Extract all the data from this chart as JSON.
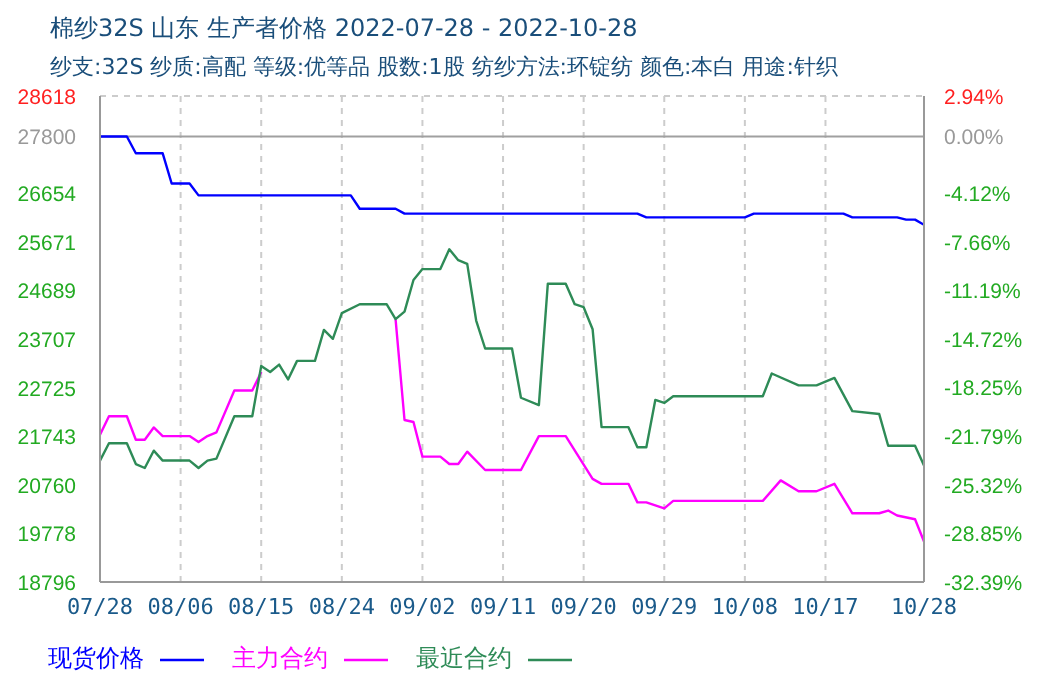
{
  "chart_data": {
    "type": "line",
    "title": "棉纱32S 山东 生产者价格 2022-07-28 - 2022-10-28",
    "subtitle": "纱支:32S 纱质:高配 等级:优等品 股数:1股 纺纱方法:环锭纺 颜色:本白 用途:针织",
    "xlim": [
      "2022-07-28",
      "2022-10-28"
    ],
    "xticks": [
      {
        "value": "2022-07-28",
        "label": "07/28"
      },
      {
        "value": "2022-08-06",
        "label": "08/06"
      },
      {
        "value": "2022-08-15",
        "label": "08/15"
      },
      {
        "value": "2022-08-24",
        "label": "08/24"
      },
      {
        "value": "2022-09-02",
        "label": "09/02"
      },
      {
        "value": "2022-09-11",
        "label": "09/11"
      },
      {
        "value": "2022-09-20",
        "label": "09/20"
      },
      {
        "value": "2022-09-29",
        "label": "09/29"
      },
      {
        "value": "2022-10-08",
        "label": "10/08"
      },
      {
        "value": "2022-10-17",
        "label": "10/17"
      },
      {
        "value": "2022-10-28",
        "label": "10/28"
      }
    ],
    "ylim": [
      18796,
      28618
    ],
    "yticks": [
      28618,
      27800,
      26654,
      25671,
      24689,
      23707,
      22725,
      21743,
      20760,
      19778,
      18796
    ],
    "y2lim": [
      -32.39,
      2.94
    ],
    "y2ticks": [
      {
        "value": 2.94,
        "label": "2.94%"
      },
      {
        "value": 0,
        "label": "0.00%"
      },
      {
        "value": -4.12,
        "label": "-4.12%"
      },
      {
        "value": -7.66,
        "label": "-7.66%"
      },
      {
        "value": -11.19,
        "label": "-11.19%"
      },
      {
        "value": -14.72,
        "label": "-14.72%"
      },
      {
        "value": -18.25,
        "label": "-18.25%"
      },
      {
        "value": -21.79,
        "label": "-21.79%"
      },
      {
        "value": -25.32,
        "label": "-25.32%"
      },
      {
        "value": -28.85,
        "label": "-28.85%"
      },
      {
        "value": -32.39,
        "label": "-32.39%"
      }
    ],
    "grid": true,
    "legend": "bottom",
    "marker": "none",
    "line_style": "solid",
    "ref_lines": [
      {
        "axis": "y",
        "value": 27800,
        "color": "#a0a0a0"
      }
    ],
    "series": [
      {
        "name": "现货价格",
        "color": "#0000ff",
        "x": [
          "2022-07-28",
          "2022-07-31",
          "2022-08-01",
          "2022-08-04",
          "2022-08-05",
          "2022-08-07",
          "2022-08-08",
          "2022-08-25",
          "2022-08-26",
          "2022-08-30",
          "2022-08-31",
          "2022-09-26",
          "2022-09-27",
          "2022-10-08",
          "2022-10-09",
          "2022-10-19",
          "2022-10-20",
          "2022-10-25",
          "2022-10-26",
          "2022-10-27",
          "2022-10-28"
        ],
        "values": [
          27800,
          27800,
          27460,
          27460,
          26850,
          26850,
          26610,
          26610,
          26340,
          26340,
          26240,
          26240,
          26165,
          26165,
          26240,
          26240,
          26165,
          26165,
          26120,
          26120,
          26015
        ]
      },
      {
        "name": "主力合约",
        "color": "#ff00ff",
        "x": [
          "2022-07-28",
          "2022-07-29",
          "2022-07-31",
          "2022-08-01",
          "2022-08-02",
          "2022-08-03",
          "2022-08-04",
          "2022-08-07",
          "2022-08-08",
          "2022-08-09",
          "2022-08-10",
          "2022-08-12",
          "2022-08-14",
          "2022-08-15",
          "2022-08-16",
          "2022-08-29",
          "2022-08-30",
          "2022-08-31",
          "2022-09-01",
          "2022-09-02",
          "2022-09-04",
          "2022-09-05",
          "2022-09-06",
          "2022-09-07",
          "2022-09-09",
          "2022-09-13",
          "2022-09-15",
          "2022-09-18",
          "2022-09-21",
          "2022-09-22",
          "2022-09-25",
          "2022-09-26",
          "2022-09-27",
          "2022-09-29",
          "2022-09-30",
          "2022-10-10",
          "2022-10-12",
          "2022-10-14",
          "2022-10-16",
          "2022-10-18",
          "2022-10-20",
          "2022-10-23",
          "2022-10-24",
          "2022-10-25",
          "2022-10-27",
          "2022-10-28"
        ],
        "values": [
          21774,
          22145,
          22145,
          21670,
          21670,
          21920,
          21745,
          21745,
          21625,
          21745,
          21820,
          22665,
          22665,
          23040,
          null,
          null,
          24110,
          22070,
          22030,
          21330,
          21330,
          21180,
          21180,
          21430,
          21060,
          21060,
          21745,
          21745,
          20880,
          20780,
          20780,
          20405,
          20405,
          20285,
          20435,
          20435,
          20850,
          20630,
          20630,
          20780,
          20185,
          20185,
          20240,
          20140,
          20065,
          19615
        ]
      },
      {
        "name": "最近合约",
        "color": "#2e8b57",
        "x": [
          "2022-07-28",
          "2022-07-29",
          "2022-07-31",
          "2022-08-01",
          "2022-08-02",
          "2022-08-03",
          "2022-08-04",
          "2022-08-07",
          "2022-08-08",
          "2022-08-09",
          "2022-08-10",
          "2022-08-12",
          "2022-08-14",
          "2022-08-15",
          "2022-08-16",
          "2022-08-17",
          "2022-08-18",
          "2022-08-19",
          "2022-08-21",
          "2022-08-22",
          "2022-08-23",
          "2022-08-24",
          "2022-08-26",
          "2022-08-29",
          "2022-08-30",
          "2022-08-31",
          "2022-09-01",
          "2022-09-02",
          "2022-09-04",
          "2022-09-05",
          "2022-09-06",
          "2022-09-07",
          "2022-09-08",
          "2022-09-09",
          "2022-09-12",
          "2022-09-13",
          "2022-09-15",
          "2022-09-16",
          "2022-09-18",
          "2022-09-19",
          "2022-09-20",
          "2022-09-21",
          "2022-09-22",
          "2022-09-25",
          "2022-09-26",
          "2022-09-27",
          "2022-09-28",
          "2022-09-29",
          "2022-09-30",
          "2022-10-10",
          "2022-10-11",
          "2022-10-14",
          "2022-10-16",
          "2022-10-18",
          "2022-10-20",
          "2022-10-23",
          "2022-10-24",
          "2022-10-27",
          "2022-10-28"
        ],
        "values": [
          21250,
          21600,
          21600,
          21180,
          21100,
          21450,
          21250,
          21250,
          21100,
          21250,
          21290,
          22145,
          22145,
          23160,
          23040,
          23190,
          22890,
          23265,
          23265,
          23890,
          23710,
          24230,
          24410,
          24410,
          24110,
          24260,
          24900,
          25120,
          25120,
          25520,
          25300,
          25225,
          24080,
          23515,
          23515,
          22520,
          22370,
          24825,
          24825,
          24410,
          24350,
          23905,
          21925,
          21925,
          21520,
          21520,
          22475,
          22415,
          22550,
          22550,
          23010,
          22770,
          22770,
          22920,
          22250,
          22190,
          21550,
          21550,
          21150
        ]
      }
    ]
  }
}
